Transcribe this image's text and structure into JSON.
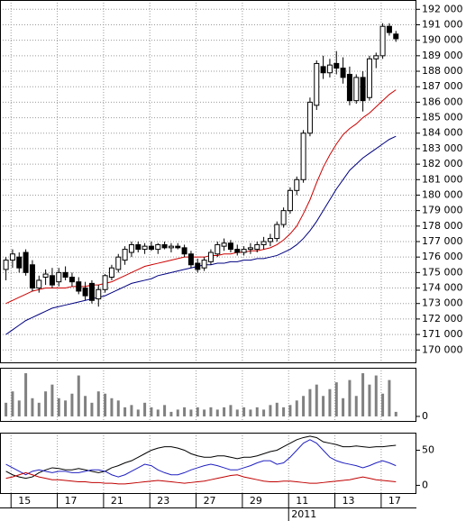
{
  "chart_data": [
    {
      "type": "candlestick",
      "open": [
        175200,
        175800,
        176000,
        176300,
        175500,
        174000,
        174700,
        174800,
        174400,
        175000,
        174700,
        174400,
        174000,
        174300,
        173300,
        173900,
        174700,
        175200,
        175800,
        176300,
        176800,
        176500,
        176700,
        176500,
        176800,
        176600,
        176700,
        176600,
        176200,
        175600,
        175300,
        175700,
        176200,
        176700,
        176900,
        176500,
        176300,
        176500,
        176500,
        176800,
        177000,
        177200,
        178100,
        179000,
        180300,
        181000,
        184000,
        185800,
        188300,
        187900,
        188500,
        188200,
        187800,
        186100,
        187600,
        186300,
        188800,
        189000,
        190900,
        190400
      ],
      "high": [
        176000,
        176500,
        176300,
        176500,
        175800,
        174800,
        175200,
        175300,
        175300,
        175400,
        175000,
        174700,
        174400,
        174500,
        174200,
        174900,
        175500,
        176200,
        176700,
        177000,
        177000,
        176900,
        177000,
        176900,
        177000,
        176900,
        176900,
        176800,
        176400,
        175900,
        176000,
        176500,
        177000,
        177200,
        177100,
        176800,
        176700,
        176900,
        177000,
        177300,
        177500,
        178300,
        179200,
        180500,
        181200,
        184200,
        186300,
        188700,
        189000,
        188800,
        189300,
        188900,
        188300,
        187800,
        188000,
        189000,
        189200,
        191100,
        191100,
        190600
      ],
      "low": [
        174500,
        175300,
        175000,
        174800,
        173800,
        173700,
        174200,
        174000,
        174100,
        174500,
        174100,
        173600,
        173200,
        173000,
        172800,
        173700,
        174500,
        175000,
        175500,
        176000,
        176300,
        176200,
        176400,
        176200,
        176500,
        176300,
        176500,
        176000,
        175300,
        175000,
        175100,
        175500,
        176000,
        176400,
        176300,
        176100,
        176100,
        176200,
        176300,
        176500,
        176700,
        177000,
        177900,
        178800,
        180000,
        180800,
        183800,
        185500,
        187500,
        187600,
        187800,
        187200,
        185800,
        185900,
        185400,
        186100,
        188200,
        188800,
        190300,
        189900
      ],
      "close": [
        175800,
        176200,
        175300,
        175000,
        174000,
        174500,
        174900,
        174200,
        175000,
        174700,
        174400,
        173800,
        173500,
        173200,
        173900,
        174800,
        175300,
        176000,
        176500,
        176800,
        176500,
        176700,
        176500,
        176800,
        176600,
        176700,
        176600,
        176200,
        175500,
        175200,
        175800,
        176300,
        176800,
        176900,
        176500,
        176300,
        176500,
        176600,
        176800,
        177000,
        177200,
        178100,
        179000,
        180300,
        181000,
        184000,
        186000,
        188500,
        187900,
        188400,
        188200,
        187600,
        186100,
        187600,
        186100,
        188800,
        189000,
        190900,
        190500,
        190100
      ],
      "up_color": "#ffffff",
      "down_color": "#000000",
      "wick_color": "#000000",
      "series": [
        {
          "color": "#cc0000",
          "values": [
            173000,
            173200,
            173400,
            173600,
            173800,
            173900,
            174000,
            174000,
            174000,
            174000,
            174100,
            174100,
            174100,
            174200,
            174200,
            174300,
            174400,
            174600,
            174800,
            175000,
            175200,
            175400,
            175500,
            175600,
            175700,
            175800,
            175900,
            176000,
            176000,
            176000,
            176000,
            176100,
            176100,
            176200,
            176200,
            176300,
            176300,
            176400,
            176400,
            176500,
            176600,
            176800,
            177100,
            177500,
            178000,
            178800,
            179700,
            180800,
            181800,
            182600,
            183300,
            183900,
            184300,
            184600,
            185000,
            185300,
            185700,
            186100,
            186500,
            186800
          ]
        },
        {
          "color": "#000080",
          "values": [
            171000,
            171300,
            171600,
            171900,
            172100,
            172300,
            172500,
            172700,
            172800,
            172900,
            173000,
            173100,
            173200,
            173300,
            173400,
            173500,
            173700,
            173900,
            174100,
            174300,
            174400,
            174500,
            174600,
            174800,
            174900,
            175000,
            175100,
            175200,
            175300,
            175400,
            175500,
            175500,
            175600,
            175600,
            175700,
            175700,
            175800,
            175800,
            175900,
            175900,
            176000,
            176100,
            176300,
            176500,
            176800,
            177200,
            177700,
            178300,
            179000,
            179700,
            180400,
            181000,
            181600,
            182000,
            182400,
            182700,
            183000,
            183300,
            183600,
            183800
          ]
        }
      ],
      "xlim": [
        -0.9,
        62.1
      ],
      "ylim": [
        169200,
        192600
      ],
      "yticks": [
        {
          "value": 170000,
          "label": "170 000"
        },
        {
          "value": 171000,
          "label": "171 000"
        },
        {
          "value": 172000,
          "label": "172 000"
        },
        {
          "value": 173000,
          "label": "173 000"
        },
        {
          "value": 174000,
          "label": "174 000"
        },
        {
          "value": 175000,
          "label": "175 000"
        },
        {
          "value": 176000,
          "label": "176 000"
        },
        {
          "value": 177000,
          "label": "177 000"
        },
        {
          "value": 178000,
          "label": "178 000"
        },
        {
          "value": 179000,
          "label": "179 000"
        },
        {
          "value": 180000,
          "label": "180 000"
        },
        {
          "value": 181000,
          "label": "181 000"
        },
        {
          "value": 182000,
          "label": "182 000"
        },
        {
          "value": 183000,
          "label": "183 000"
        },
        {
          "value": 184000,
          "label": "184 000"
        },
        {
          "value": 185000,
          "label": "185 000"
        },
        {
          "value": 186000,
          "label": "186 000"
        },
        {
          "value": 187000,
          "label": "187 000"
        },
        {
          "value": 188000,
          "label": "188 000"
        },
        {
          "value": 189000,
          "label": "189 000"
        },
        {
          "value": 190000,
          "label": "190 000"
        },
        {
          "value": 191000,
          "label": "191 000"
        },
        {
          "value": 192000,
          "label": "192 000"
        }
      ],
      "grid": true
    },
    {
      "type": "bar",
      "values": [
        30,
        55,
        35,
        95,
        40,
        30,
        55,
        70,
        40,
        35,
        50,
        90,
        45,
        30,
        55,
        50,
        40,
        35,
        20,
        25,
        15,
        30,
        20,
        15,
        25,
        10,
        15,
        20,
        15,
        20,
        15,
        20,
        15,
        20,
        25,
        15,
        20,
        15,
        20,
        15,
        25,
        30,
        20,
        25,
        35,
        45,
        60,
        70,
        45,
        60,
        75,
        40,
        80,
        45,
        95,
        70,
        90,
        50,
        80,
        10
      ],
      "color": "#808080",
      "xlim": [
        -0.9,
        62.1
      ],
      "ylim": [
        -10,
        107
      ],
      "yticks": [
        0
      ]
    },
    {
      "type": "line",
      "series": [
        {
          "color": "#000000",
          "values": [
            20,
            15,
            12,
            10,
            12,
            18,
            22,
            25,
            24,
            22,
            22,
            24,
            22,
            20,
            18,
            20,
            25,
            28,
            32,
            35,
            40,
            45,
            50,
            53,
            55,
            55,
            53,
            50,
            45,
            42,
            40,
            40,
            42,
            42,
            40,
            38,
            40,
            40,
            42,
            45,
            48,
            50,
            55,
            60,
            65,
            68,
            70,
            68,
            62,
            60,
            58,
            55,
            55,
            56,
            55,
            54,
            55,
            55,
            56,
            57
          ]
        },
        {
          "color": "#2020c0",
          "values": [
            30,
            25,
            20,
            15,
            20,
            22,
            20,
            18,
            20,
            20,
            18,
            18,
            20,
            22,
            22,
            20,
            15,
            12,
            15,
            20,
            25,
            30,
            28,
            22,
            18,
            15,
            15,
            18,
            22,
            25,
            28,
            30,
            28,
            25,
            22,
            22,
            25,
            28,
            32,
            35,
            35,
            30,
            32,
            40,
            50,
            60,
            65,
            60,
            50,
            40,
            35,
            32,
            30,
            28,
            25,
            28,
            32,
            35,
            32,
            28
          ]
        },
        {
          "color": "#c00000",
          "values": [
            10,
            12,
            15,
            18,
            15,
            12,
            10,
            8,
            8,
            7,
            6,
            5,
            5,
            4,
            4,
            3,
            3,
            2,
            2,
            3,
            4,
            5,
            6,
            7,
            6,
            5,
            4,
            3,
            4,
            5,
            6,
            8,
            10,
            12,
            14,
            15,
            12,
            10,
            8,
            6,
            5,
            5,
            6,
            6,
            5,
            4,
            3,
            3,
            4,
            5,
            6,
            7,
            8,
            10,
            12,
            10,
            8,
            7,
            6,
            5
          ]
        }
      ],
      "xlim": [
        -0.9,
        62.1
      ],
      "ylim": [
        -11,
        75
      ],
      "yticks": [
        0,
        50
      ],
      "xticks": [
        {
          "value": 0.7,
          "label": "15"
        },
        {
          "value": 7.7,
          "label": "17"
        },
        {
          "value": 14.7,
          "label": "21"
        },
        {
          "value": 21.7,
          "label": "23"
        },
        {
          "value": 28.7,
          "label": "27"
        },
        {
          "value": 35.7,
          "label": "29"
        },
        {
          "value": 42.7,
          "label": "11"
        },
        {
          "value": 49.7,
          "label": "13"
        },
        {
          "value": 56.7,
          "label": "17"
        }
      ],
      "annotation": {
        "value": 42.7,
        "label": "2011"
      }
    }
  ]
}
